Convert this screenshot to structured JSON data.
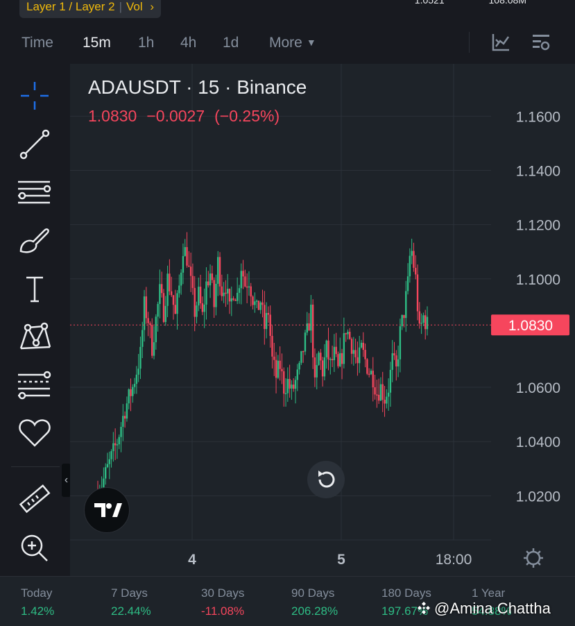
{
  "header": {
    "breadcrumb": [
      "Layer 1 / Layer 2",
      "Vol"
    ],
    "breadcrumb_arrow": "›",
    "top_values": [
      "1.0521",
      "108.08M"
    ]
  },
  "toolbar": {
    "intervals": [
      "Time",
      "15m",
      "1h",
      "4h",
      "1d",
      "More"
    ],
    "active_interval": "15m",
    "icons": [
      "indicators-icon",
      "chart-settings-icon"
    ]
  },
  "drawing_tools": [
    "crosshair-icon",
    "trend-line-icon",
    "horizontal-lines-icon",
    "brush-icon",
    "text-icon",
    "pattern-icon",
    "fib-icon",
    "favorites-icon",
    "ruler-icon",
    "zoom-in-icon"
  ],
  "chart": {
    "symbol": "ADAUSDT · 15 · Binance",
    "last_price": "1.0830",
    "change": "−0.0027",
    "change_pct": "(−0.25%)",
    "price_label": "1.0830",
    "colors": {
      "up": "#2ebd85",
      "down": "#f6465d",
      "grid": "#2b3139",
      "text": "#b7bdc6"
    }
  },
  "chart_data": {
    "type": "candlestick",
    "y_ticks": [
      "1.1600",
      "1.1400",
      "1.1200",
      "1.1000",
      "1.0600",
      "1.0400",
      "1.0200"
    ],
    "y_tick_values": [
      1.16,
      1.14,
      1.12,
      1.1,
      1.06,
      1.04,
      1.02
    ],
    "x_ticks": [
      "4",
      "5",
      "18:00"
    ],
    "ylim": [
      1.0037,
      1.1793
    ],
    "current_price": 1.083,
    "close_path": [
      [
        0,
        1.02
      ],
      [
        5,
        1.03
      ],
      [
        10,
        1.04
      ],
      [
        14,
        1.052
      ],
      [
        18,
        1.06
      ],
      [
        22,
        1.072
      ],
      [
        24,
        1.09
      ],
      [
        26,
        1.085
      ],
      [
        28,
        1.075
      ],
      [
        30,
        1.085
      ],
      [
        32,
        1.095
      ],
      [
        34,
        1.088
      ],
      [
        36,
        1.1
      ],
      [
        38,
        1.095
      ],
      [
        40,
        1.086
      ],
      [
        42,
        1.097
      ],
      [
        44,
        1.112
      ],
      [
        46,
        1.108
      ],
      [
        48,
        1.098
      ],
      [
        50,
        1.088
      ],
      [
        52,
        1.094
      ],
      [
        54,
        1.086
      ],
      [
        56,
        1.098
      ],
      [
        58,
        1.102
      ],
      [
        60,
        1.09
      ],
      [
        62,
        1.106
      ],
      [
        64,
        1.096
      ],
      [
        66,
        1.098
      ],
      [
        68,
        1.088
      ],
      [
        70,
        1.096
      ],
      [
        72,
        1.094
      ],
      [
        74,
        1.105
      ],
      [
        76,
        1.098
      ],
      [
        78,
        1.1
      ],
      [
        80,
        1.093
      ],
      [
        82,
        1.088
      ],
      [
        84,
        1.092
      ],
      [
        86,
        1.082
      ],
      [
        88,
        1.088
      ],
      [
        90,
        1.07
      ],
      [
        92,
        1.064
      ],
      [
        94,
        1.068
      ],
      [
        96,
        1.06
      ],
      [
        98,
        1.062
      ],
      [
        100,
        1.058
      ],
      [
        102,
        1.062
      ],
      [
        104,
        1.066
      ],
      [
        106,
        1.074
      ],
      [
        108,
        1.08
      ],
      [
        110,
        1.088
      ],
      [
        112,
        1.06
      ],
      [
        114,
        1.072
      ],
      [
        116,
        1.066
      ],
      [
        118,
        1.074
      ],
      [
        120,
        1.068
      ],
      [
        122,
        1.072
      ],
      [
        124,
        1.066
      ],
      [
        126,
        1.072
      ],
      [
        128,
        1.082
      ],
      [
        130,
        1.078
      ],
      [
        132,
        1.074
      ],
      [
        134,
        1.068
      ],
      [
        136,
        1.074
      ],
      [
        138,
        1.07
      ],
      [
        140,
        1.066
      ],
      [
        142,
        1.064
      ],
      [
        144,
        1.058
      ],
      [
        146,
        1.06
      ],
      [
        148,
        1.056
      ],
      [
        150,
        1.06
      ],
      [
        152,
        1.07
      ],
      [
        154,
        1.066
      ],
      [
        156,
        1.08
      ],
      [
        158,
        1.088
      ],
      [
        160,
        1.098
      ],
      [
        161,
        1.108
      ],
      [
        162,
        1.11
      ],
      [
        164,
        1.1
      ],
      [
        166,
        1.08
      ],
      [
        168,
        1.086
      ],
      [
        170,
        1.083
      ]
    ]
  },
  "periods": [
    {
      "label": "Today",
      "value": "1.42%",
      "dir": "up"
    },
    {
      "label": "7 Days",
      "value": "22.44%",
      "dir": "up"
    },
    {
      "label": "30 Days",
      "value": "-11.08%",
      "dir": "down"
    },
    {
      "label": "90 Days",
      "value": "206.28%",
      "dir": "up"
    },
    {
      "label": "180 Days",
      "value": "197.67%",
      "dir": "up"
    },
    {
      "label": "1 Year",
      "value": "54.88%",
      "dir": "up"
    }
  ],
  "watermark": "@Amina Chattha"
}
